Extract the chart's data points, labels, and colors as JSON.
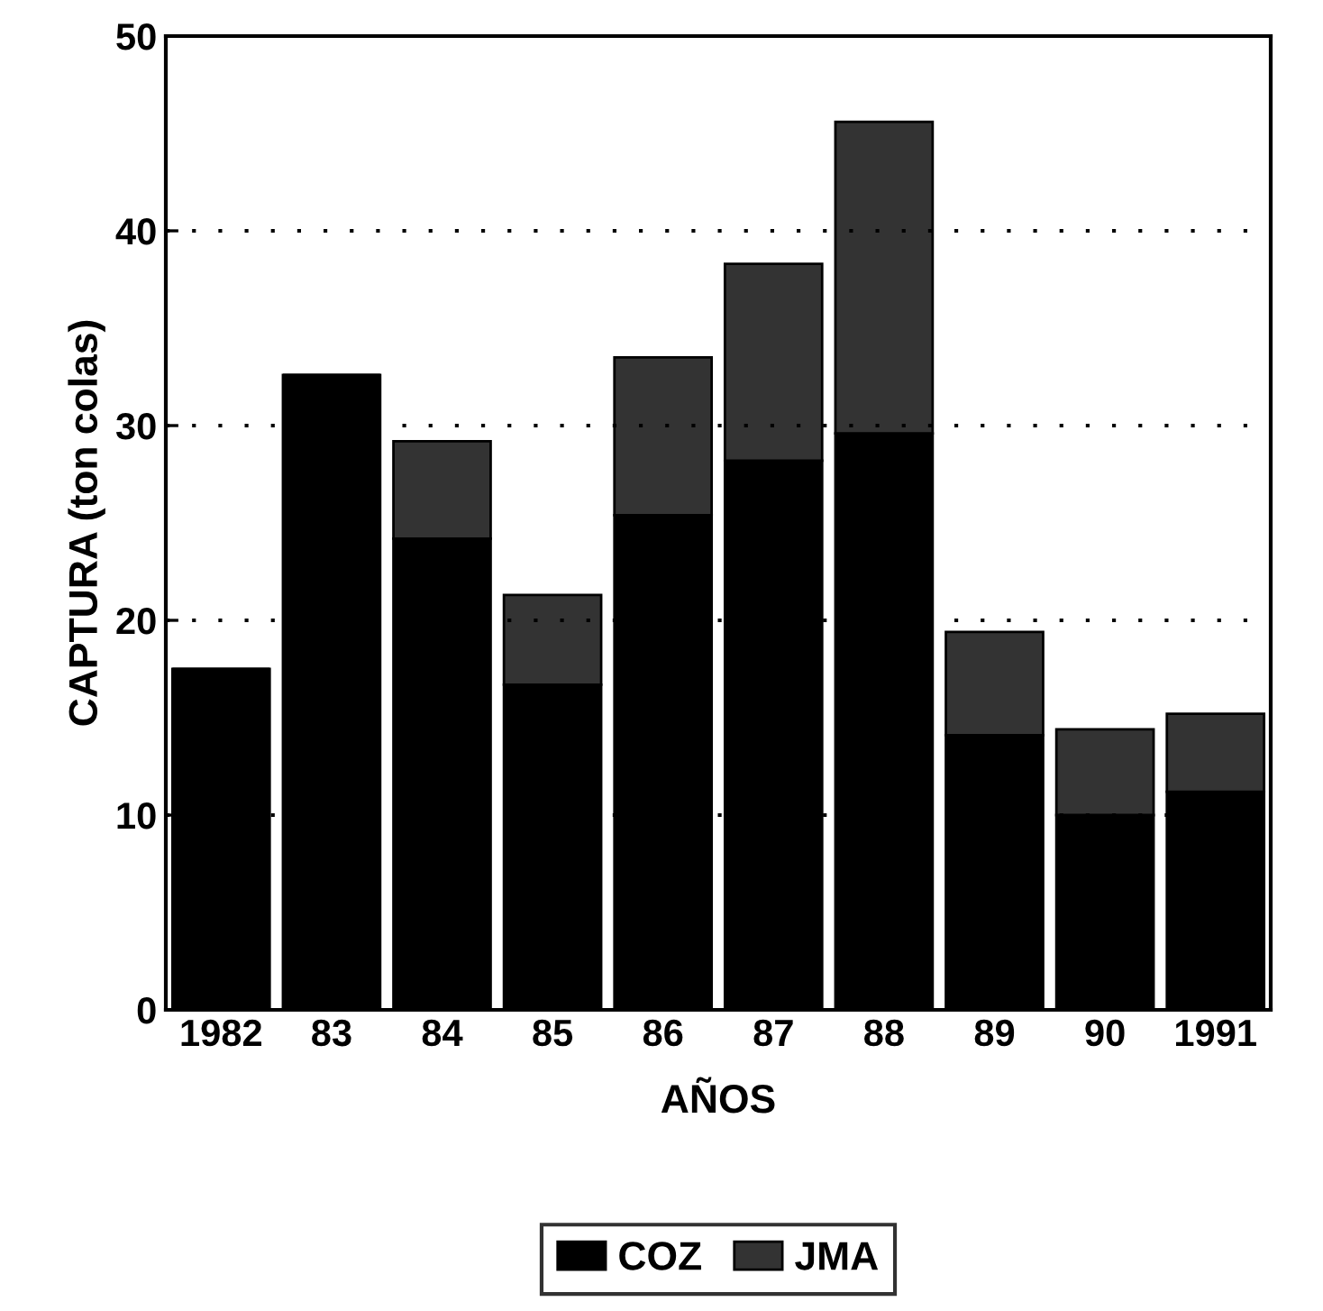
{
  "chart_data": {
    "type": "bar",
    "stacked": true,
    "xlabel": "AÑOS",
    "ylabel": "CAPTURA (ton colas)",
    "categories": [
      "1982",
      "83",
      "84",
      "85",
      "86",
      "87",
      "88",
      "89",
      "90",
      "1991"
    ],
    "series": [
      {
        "name": "COZ",
        "color": "#000000",
        "values": [
          17.5,
          32.6,
          24.2,
          16.7,
          25.4,
          28.2,
          29.6,
          14.1,
          10.0,
          11.2
        ]
      },
      {
        "name": "JMA",
        "color": "#333333",
        "values": [
          null,
          null,
          5.0,
          4.6,
          8.1,
          10.1,
          16.0,
          5.3,
          4.4,
          4.0
        ]
      }
    ],
    "ylim": [
      0,
      50
    ],
    "yticks": [
      0,
      10,
      20,
      30,
      40,
      50
    ],
    "grid": "y",
    "legend": "bottom"
  }
}
